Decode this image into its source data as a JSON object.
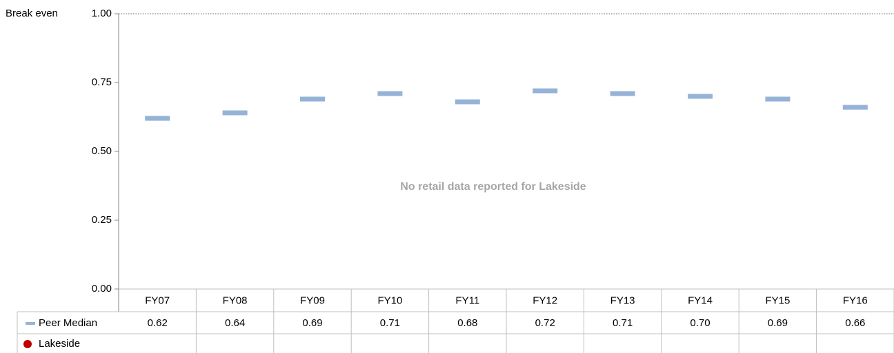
{
  "chart_data": {
    "type": "marker",
    "annotation": "No retail data reported for Lakeside",
    "reference_line": {
      "value": 1,
      "label": "Break even"
    },
    "categories": [
      "FY07",
      "FY08",
      "FY09",
      "FY10",
      "FY11",
      "FY12",
      "FY13",
      "FY14",
      "FY15",
      "FY16"
    ],
    "series": [
      {
        "name": "Peer Median",
        "color": "#95b3d7",
        "values": [
          0.62,
          0.64,
          0.69,
          0.71,
          0.68,
          0.72,
          0.71,
          0.7,
          0.69,
          0.66
        ],
        "value_labels": [
          "0.62",
          "0.64",
          "0.69",
          "0.71",
          "0.68",
          "0.72",
          "0.71",
          "0.70",
          "0.69",
          "0.66"
        ]
      },
      {
        "name": "Lakeside",
        "color": "#c00000",
        "values": [
          null,
          null,
          null,
          null,
          null,
          null,
          null,
          null,
          null,
          null
        ]
      }
    ],
    "ylim": [
      0,
      1
    ],
    "yticks": [
      {
        "value": 0,
        "label": "0.00"
      },
      {
        "value": 0.25,
        "label": "0.25"
      },
      {
        "value": 0.5,
        "label": "0.50"
      },
      {
        "value": 0.75,
        "label": "0.75"
      },
      {
        "value": 1,
        "label": "1.00"
      }
    ]
  }
}
